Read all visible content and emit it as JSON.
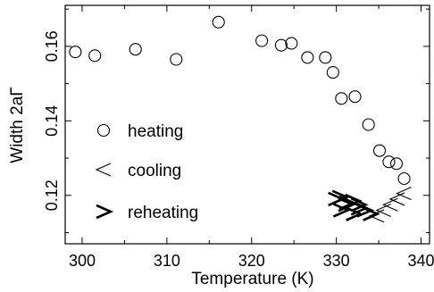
{
  "colors": {
    "foreground": "#000000",
    "background": "#ffffff"
  },
  "chart_data": {
    "type": "scatter",
    "title": "",
    "xlabel": "Temperature (K)",
    "ylabel": "Width 2aΓ",
    "xlim": [
      298,
      341
    ],
    "ylim": [
      0.107,
      0.171
    ],
    "x_ticks": [
      300,
      310,
      320,
      330,
      340
    ],
    "x_tick_labels": [
      "300",
      "310",
      "320",
      "330",
      "340"
    ],
    "y_ticks": [
      0.12,
      0.14,
      0.16
    ],
    "y_tick_labels": [
      "0.12",
      "0.14",
      "0.16"
    ],
    "grid": false,
    "legend_position": "left",
    "series": [
      {
        "name": "heating",
        "marker": "circle",
        "x": [
          299.2,
          301.5,
          306.3,
          311.1,
          316.1,
          321.2,
          323.5,
          324.7,
          326.6,
          328.7,
          329.6,
          330.6,
          332.2,
          333.8,
          335.1,
          336.2,
          337.1,
          338.0
        ],
        "y": [
          0.1585,
          0.1575,
          0.1592,
          0.1565,
          0.1665,
          0.1615,
          0.1603,
          0.1608,
          0.157,
          0.157,
          0.153,
          0.146,
          0.1465,
          0.139,
          0.132,
          0.129,
          0.1285,
          0.1245
        ]
      },
      {
        "name": "cooling",
        "marker": "chevron-left",
        "x": [
          334.8,
          335.6,
          336.4,
          337.2,
          338.0
        ],
        "y": [
          0.1145,
          0.116,
          0.1175,
          0.119,
          0.1205
        ]
      },
      {
        "name": "reheating",
        "marker": "chevron-right",
        "x": [
          329.9,
          330.5,
          331.2,
          332.0,
          332.6,
          333.3,
          334.0,
          330.4,
          331.1,
          331.9,
          332.6
        ],
        "y": [
          0.119,
          0.116,
          0.118,
          0.115,
          0.1175,
          0.116,
          0.115,
          0.1195,
          0.1175,
          0.1185,
          0.1165
        ]
      }
    ]
  }
}
